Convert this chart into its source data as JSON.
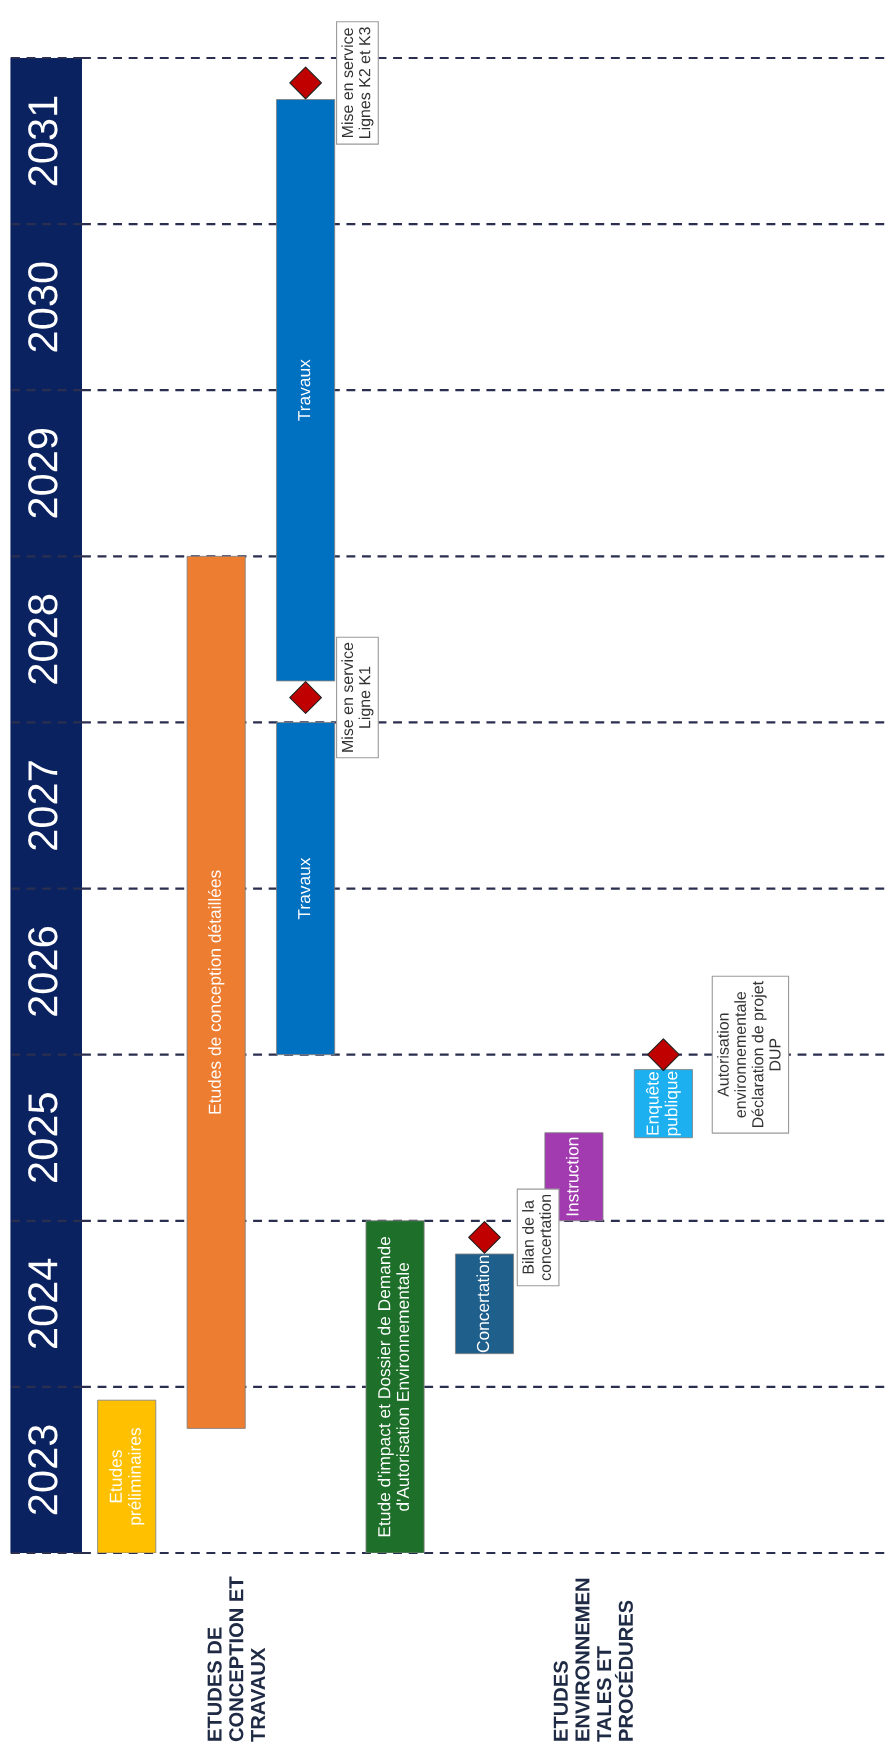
{
  "chart_data": {
    "type": "bar",
    "categories": [
      null,
      null,
      null,
      null,
      null,
      null,
      null,
      null,
      null
    ],
    "series": [
      {
        "colors": [
          "#ffc000",
          "#ed7d31",
          "#0070c0",
          "#1e6f2a",
          "#1f5f8b",
          "#a23bb0",
          "#1cb0f0",
          null,
          null
        ],
        "base": [
          2023.0,
          2023.75,
          2026.0,
          2023.0,
          2024.2,
          2025.0,
          2025.5,
          null,
          null
        ],
        "values": [
          0.92,
          5.25,
          2.0,
          2.0,
          0.6,
          0.53,
          0.41,
          null,
          null
        ],
        "value_labels": [
          "Etudes\npréliminaires",
          "Etudes de conception détaillées",
          "Travaux",
          "Etude d'impact et Dossier de Demande\nd'Autorisation Environnementale",
          "Concertation",
          "Instruction",
          "Enquête\npublique",
          null,
          null
        ]
      },
      {
        "colors": [
          null,
          null,
          "#0070c0",
          null,
          null,
          null,
          null,
          null,
          null
        ],
        "base": [
          null,
          null,
          2028.25,
          null,
          null,
          null,
          null,
          null,
          null
        ],
        "values": [
          null,
          null,
          3.5,
          null,
          null,
          null,
          null,
          null,
          null
        ],
        "value_labels": [
          null,
          null,
          "Travaux",
          null,
          null,
          null,
          null,
          null,
          null
        ]
      },
      {
        "type": "scatter",
        "color": "#c00000",
        "marker": "diamond",
        "values": [
          null,
          null,
          2028.15,
          null,
          2024.9,
          null,
          2026.0,
          null,
          null
        ]
      },
      {
        "type": "scatter",
        "color": "#c00000",
        "marker": "diamond",
        "values": [
          null,
          null,
          2031.85,
          null,
          null,
          null,
          null,
          null,
          null
        ]
      }
    ],
    "ylim": [
      2023,
      2032
    ],
    "yticks": [
      {
        "value": 2023.5,
        "label": "2023"
      },
      {
        "value": 2024.5,
        "label": "2024"
      },
      {
        "value": 2025.5,
        "label": "2025"
      },
      {
        "value": 2026.5,
        "label": "2026"
      },
      {
        "value": 2027.5,
        "label": "2027"
      },
      {
        "value": 2028.5,
        "label": "2028"
      },
      {
        "value": 2029.5,
        "label": "2029"
      },
      {
        "value": 2030.5,
        "label": "2030"
      },
      {
        "value": 2031.5,
        "label": "2031"
      }
    ],
    "ref_lines": [
      {
        "axis": "y",
        "value": 2023,
        "color": "#2b2f4f",
        "line_style": "dashed"
      },
      {
        "axis": "y",
        "value": 2024,
        "color": "#2b2f4f",
        "line_style": "dashed"
      },
      {
        "axis": "y",
        "value": 2025,
        "color": "#2b2f4f",
        "line_style": "dashed"
      },
      {
        "axis": "y",
        "value": 2026,
        "color": "#2b2f4f",
        "line_style": "dashed"
      },
      {
        "axis": "y",
        "value": 2027,
        "color": "#2b2f4f",
        "line_style": "dashed"
      },
      {
        "axis": "y",
        "value": 2028,
        "color": "#2b2f4f",
        "line_style": "dashed"
      },
      {
        "axis": "y",
        "value": 2029,
        "color": "#2b2f4f",
        "line_style": "dashed"
      },
      {
        "axis": "y",
        "value": 2030,
        "color": "#2b2f4f",
        "line_style": "dashed"
      },
      {
        "axis": "y",
        "value": 2031,
        "color": "#2b2f4f",
        "line_style": "dashed"
      },
      {
        "axis": "y",
        "value": 2032,
        "color": "#2b2f4f",
        "line_style": "dashed"
      }
    ],
    "annotations": [
      "Mise en service\nLigne K1",
      "Mise en service\nLignes K2 et K3",
      "Bilan de la\nconcertation",
      "Autorisation\nenvironnementale\nDéclaration de projet\nDUP",
      "ETUDES DE\nCONCEPTION ET\nTRAVAUX",
      "ETUDES\nENVIRONNEMEN\nTALES ET\nPROCÉDURES"
    ]
  }
}
